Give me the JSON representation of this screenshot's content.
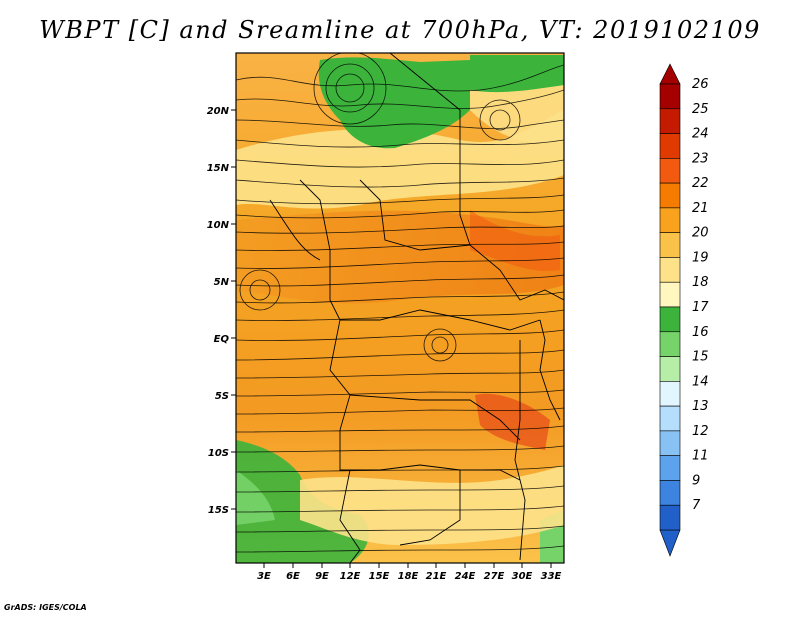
{
  "title": "WBPT [C] and Sreamline at 700hPa, VT: 2019102109",
  "footer": "GrADS: IGES/COLA",
  "latitude_labels": [
    "20N",
    "15N",
    "10N",
    "5N",
    "EQ",
    "5S",
    "10S",
    "15S"
  ],
  "longitude_labels": [
    "3E",
    "6E",
    "9E",
    "12E",
    "15E",
    "18E",
    "21E",
    "24E",
    "27E",
    "30E",
    "33E"
  ],
  "colorbar": {
    "labels": [
      "26",
      "25",
      "24",
      "23",
      "22",
      "21",
      "20",
      "19",
      "18",
      "17",
      "16",
      "15",
      "14",
      "13",
      "12",
      "11",
      "9",
      "7"
    ],
    "colors": [
      "#a50000",
      "#c41a00",
      "#e03a00",
      "#f25a10",
      "#f57c00",
      "#f9a21e",
      "#fbc24a",
      "#fde28a",
      "#fff6c0",
      "#3cb43c",
      "#76d36a",
      "#b6eea8",
      "#e2f6ff",
      "#b4defc",
      "#88c2f4",
      "#5ca2ec",
      "#3c84e0",
      "#2060c8"
    ]
  },
  "colors": {
    "warm_dominant": "#f5a623",
    "hot_core": "#f25a10",
    "green": "#3cb43c",
    "pale": "#fde28a"
  }
}
